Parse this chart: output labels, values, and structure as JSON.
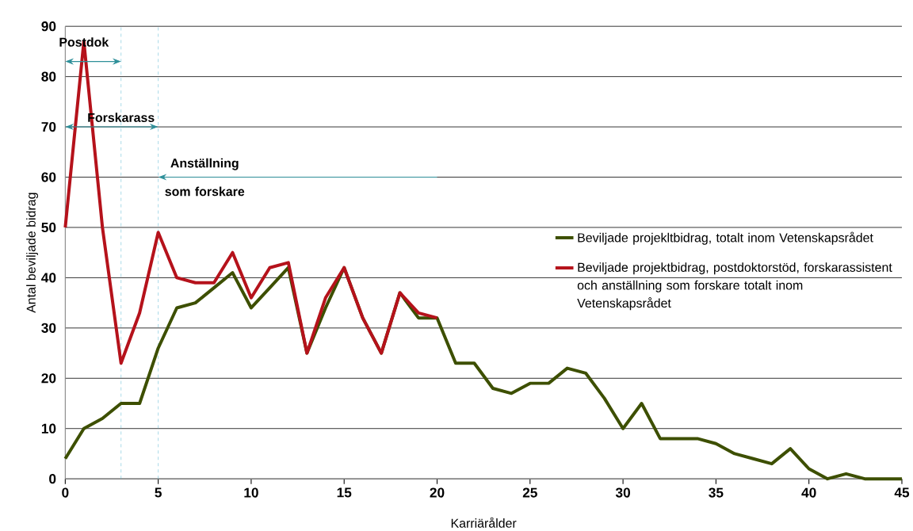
{
  "chart_data": {
    "type": "line",
    "xlabel": "Karriärålder",
    "ylabel": "Antal beviljade bidrag",
    "xlim": [
      0,
      45
    ],
    "xticks": [
      0,
      5,
      10,
      15,
      20,
      25,
      30,
      35,
      40,
      45
    ],
    "ylim": [
      0,
      90
    ],
    "yticks": [
      0,
      10,
      20,
      30,
      40,
      50,
      60,
      70,
      80,
      90
    ],
    "grid": "y",
    "legend": "right",
    "line_style": "solid",
    "marker": "none",
    "series": [
      {
        "name": "Beviljade projektbidrag, postdoktorstöd, forskarassistent och anställning som forskare totalt inom Vetenskapsrådet",
        "color": "#b5121b",
        "x": [
          0,
          1,
          2,
          3,
          4,
          5,
          6,
          7,
          8,
          9,
          10,
          11,
          12,
          13,
          14,
          15,
          16,
          17,
          18,
          19,
          20
        ],
        "values": [
          50,
          87,
          50,
          23,
          33,
          49,
          40,
          39,
          39,
          45,
          36,
          42,
          43,
          25,
          36,
          42,
          32,
          25,
          37,
          33,
          32
        ]
      },
      {
        "name": "Beviljade projekltbidrag, totalt inom Vetenskapsrådet",
        "color": "#3d4f00",
        "x": [
          0,
          1,
          2,
          3,
          4,
          5,
          6,
          7,
          8,
          9,
          10,
          11,
          12,
          13,
          14,
          15,
          16,
          17,
          18,
          19,
          20,
          21,
          22,
          23,
          24,
          25,
          26,
          27,
          28,
          29,
          30,
          31,
          32,
          33,
          34,
          35,
          36,
          37,
          38,
          39,
          40,
          41,
          42,
          43,
          44,
          45
        ],
        "values": [
          4,
          10,
          12,
          15,
          15,
          26,
          34,
          35,
          38,
          41,
          34,
          38,
          42,
          25,
          34,
          42,
          32,
          25,
          37,
          32,
          32,
          23,
          23,
          18,
          17,
          19,
          19,
          22,
          21,
          16,
          10,
          15,
          8,
          8,
          8,
          7,
          5,
          4,
          3,
          6,
          2,
          0,
          1,
          0,
          0,
          0
        ]
      }
    ],
    "ref_lines": [
      {
        "axis": "x",
        "value": 3,
        "color": "#5bb8d4",
        "line_style": "dashed"
      },
      {
        "axis": "x",
        "value": 5,
        "color": "#5bb8d4",
        "line_style": "dashed"
      }
    ],
    "annotations": [
      "Postdok",
      "Forskarass",
      "Anställning som forskare"
    ]
  }
}
